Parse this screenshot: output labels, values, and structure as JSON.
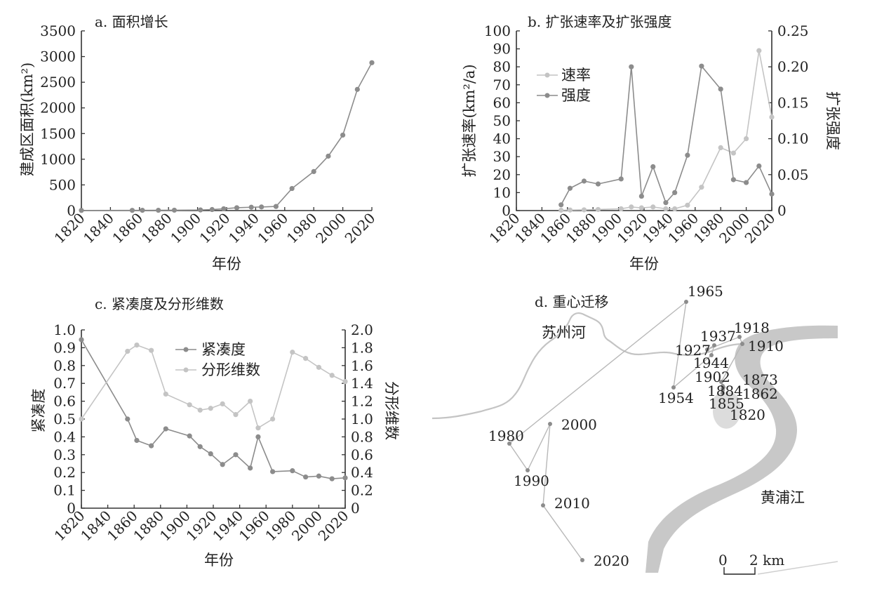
{
  "colors": {
    "dark_series": "#8c8c8c",
    "light_series": "#c4c4c4",
    "river": "#c8c8c8",
    "axis": "#333333",
    "text": "#222222"
  },
  "chart_data": [
    {
      "id": "a",
      "type": "line",
      "title": "a. 面积增长",
      "xlabel": "年份",
      "ylabel": "建成区面积(km²)",
      "xlim": [
        1820,
        2020
      ],
      "ylim": [
        0,
        3500
      ],
      "xticks": [
        1820,
        1840,
        1860,
        1880,
        1900,
        1920,
        1940,
        1960,
        1980,
        2000,
        2020
      ],
      "yticks": [
        0,
        500,
        1000,
        1500,
        2000,
        2500,
        3000,
        3500
      ],
      "grid": false,
      "series": [
        {
          "color": "dark",
          "x": [
            1820,
            1855,
            1862,
            1873,
            1884,
            1902,
            1910,
            1918,
            1927,
            1937,
            1944,
            1954,
            1965,
            1980,
            1990,
            2000,
            2010,
            2020
          ],
          "y": [
            3,
            4,
            5,
            6,
            8,
            12,
            20,
            35,
            55,
            65,
            70,
            80,
            430,
            760,
            1060,
            1470,
            2360,
            2880
          ]
        }
      ]
    },
    {
      "id": "b",
      "type": "line",
      "title": "b. 扩张速率及扩张强度",
      "xlabel": "年份",
      "ylabel": "扩张速率(km²/a)",
      "y2label": "扩张强度",
      "xlim": [
        1820,
        2020
      ],
      "ylim": [
        0,
        100
      ],
      "y2lim": [
        0,
        0.25
      ],
      "xticks": [
        1820,
        1840,
        1860,
        1880,
        1900,
        1920,
        1940,
        1960,
        1980,
        2000,
        2020
      ],
      "yticks": [
        0,
        10,
        20,
        30,
        40,
        50,
        60,
        70,
        80,
        90,
        100
      ],
      "y2ticks": [
        "0",
        "0.05",
        "0.10",
        "0.15",
        "0.20",
        "0.25"
      ],
      "legend_position": "top-left",
      "series": [
        {
          "name": "速率",
          "axis": "left",
          "color": "light",
          "x": [
            1855,
            1862,
            1873,
            1884,
            1902,
            1910,
            1918,
            1927,
            1937,
            1944,
            1954,
            1965,
            1980,
            1990,
            2000,
            2010,
            2020
          ],
          "y": [
            0.2,
            0.3,
            0.4,
            0.6,
            1,
            2,
            1.5,
            2,
            1,
            1,
            3,
            13,
            35,
            32,
            40,
            89,
            52
          ]
        },
        {
          "name": "强度",
          "axis": "right",
          "color": "dark",
          "x": [
            1855,
            1862,
            1873,
            1884,
            1902,
            1910,
            1918,
            1927,
            1937,
            1944,
            1954,
            1965,
            1980,
            1990,
            2000,
            2010,
            2020
          ],
          "y": [
            0.008,
            0.031,
            0.041,
            0.037,
            0.044,
            0.2,
            0.02,
            0.061,
            0.011,
            0.025,
            0.077,
            0.201,
            0.169,
            0.043,
            0.039,
            0.062,
            0.023
          ]
        }
      ]
    },
    {
      "id": "c",
      "type": "line",
      "title": "c. 紧凑度及分形维数",
      "xlabel": "年份",
      "ylabel": "紧凑度",
      "y2label": "分形维数",
      "xlim": [
        1820,
        2020
      ],
      "ylim": [
        0,
        1.0
      ],
      "y2lim": [
        0,
        2.0
      ],
      "xticks": [
        1820,
        1840,
        1860,
        1880,
        1900,
        1920,
        1940,
        1960,
        1980,
        2000,
        2020
      ],
      "yticks": [
        "0",
        "0.1",
        "0.2",
        "0.3",
        "0.4",
        "0.5",
        "0.6",
        "0.7",
        "0.8",
        "0.9",
        "1.0"
      ],
      "y2ticks": [
        "0",
        "0.2",
        "0.4",
        "0.6",
        "0.8",
        "1.0",
        "1.2",
        "1.4",
        "1.6",
        "1.8",
        "2.0"
      ],
      "legend_position": "top-center",
      "series": [
        {
          "name": "紧凑度",
          "axis": "left",
          "color": "dark",
          "x": [
            1820,
            1855,
            1862,
            1873,
            1884,
            1902,
            1910,
            1918,
            1927,
            1937,
            1948,
            1954,
            1965,
            1980,
            1990,
            2000,
            2010,
            2020
          ],
          "y": [
            0.945,
            0.5,
            0.38,
            0.35,
            0.445,
            0.405,
            0.345,
            0.305,
            0.245,
            0.3,
            0.225,
            0.4,
            0.205,
            0.21,
            0.175,
            0.18,
            0.165,
            0.17
          ]
        },
        {
          "name": "分形维数",
          "axis": "right",
          "color": "light",
          "x": [
            1820,
            1855,
            1862,
            1873,
            1884,
            1902,
            1910,
            1918,
            1927,
            1937,
            1948,
            1954,
            1965,
            1980,
            1990,
            2000,
            2010,
            2020
          ],
          "y": [
            1.0,
            1.76,
            1.83,
            1.77,
            1.28,
            1.16,
            1.1,
            1.12,
            1.17,
            1.05,
            1.2,
            0.9,
            1.0,
            1.75,
            1.68,
            1.58,
            1.49,
            1.42
          ]
        }
      ]
    },
    {
      "id": "d",
      "type": "scatter",
      "title": "d. 重心迁移",
      "labels": {
        "river_suzhou": "苏州河",
        "river_huangpu": "黄浦江",
        "scale": "2 km",
        "scale_zero": "0"
      },
      "points": [
        {
          "year": "1820"
        },
        {
          "year": "1855"
        },
        {
          "year": "1862"
        },
        {
          "year": "1873"
        },
        {
          "year": "1884"
        },
        {
          "year": "1902"
        },
        {
          "year": "1910"
        },
        {
          "year": "1918"
        },
        {
          "year": "1927"
        },
        {
          "year": "1937"
        },
        {
          "year": "1944"
        },
        {
          "year": "1954"
        },
        {
          "year": "1965"
        },
        {
          "year": "1980"
        },
        {
          "year": "1990"
        },
        {
          "year": "2000"
        },
        {
          "year": "2010"
        },
        {
          "year": "2020"
        }
      ]
    }
  ]
}
